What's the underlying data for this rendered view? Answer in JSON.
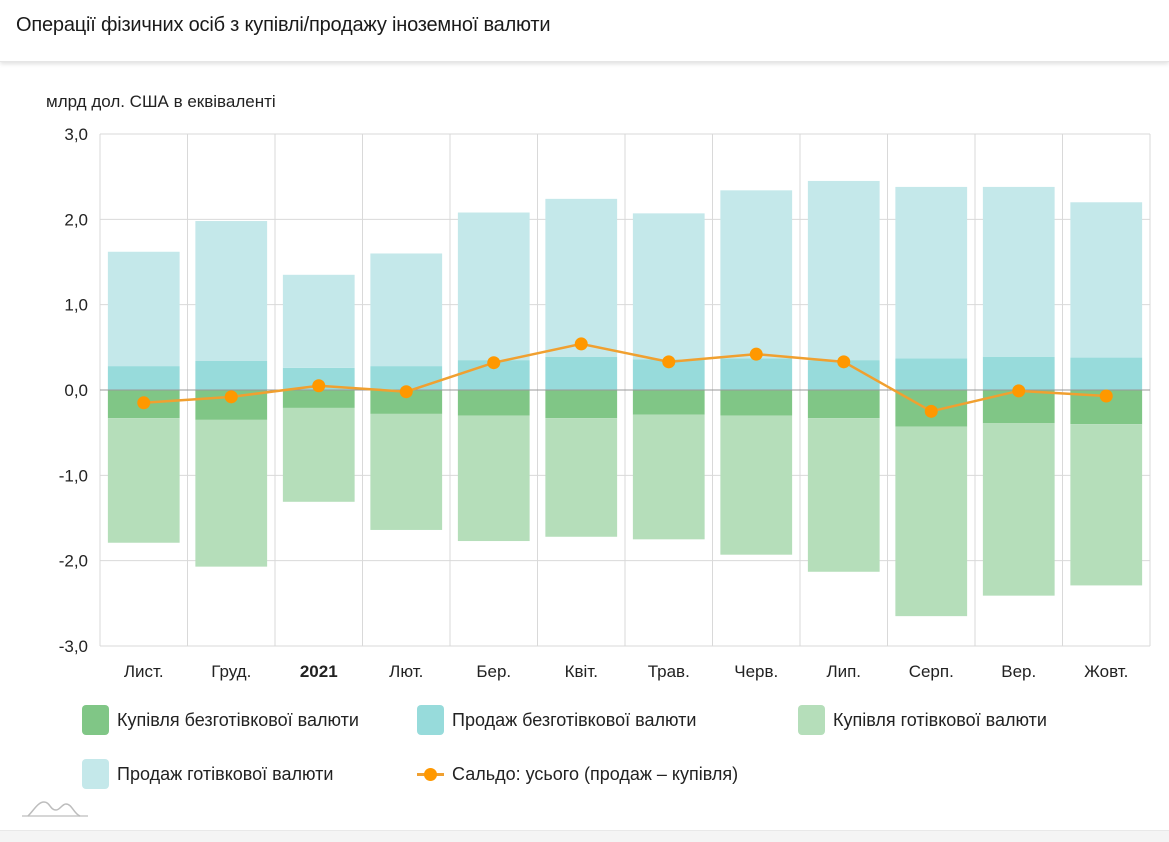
{
  "header": {
    "title": "Операції фізичних осіб з купівлі/продажу іноземної валюти"
  },
  "colors": {
    "buy_noncash": "#80c686",
    "sell_noncash": "#97dbdb",
    "buy_cash": "#b5deba",
    "sell_cash": "#c4e8ea",
    "saldo": "#ff9800",
    "saldo_line": "#f0a030",
    "grid": "#d9d9d9",
    "zero_line": "#999999"
  },
  "chart_data": {
    "type": "bar",
    "stacked": true,
    "title": "Операції фізичних осіб з купівлі/продажу іноземної валюти",
    "ylabel": "млрд дол. США в еквіваленті",
    "xlabel": "",
    "ylim": [
      -3.0,
      3.0
    ],
    "yticks": [
      "3,0",
      "2,0",
      "1,0",
      "0,0",
      "-1,0",
      "-2,0",
      "-3,0"
    ],
    "ytick_values": [
      3,
      2,
      1,
      0,
      -1,
      -2,
      -3
    ],
    "grid": true,
    "legend_position": "bottom",
    "categories": [
      "Лист.",
      "Груд.",
      "2021",
      "Лют.",
      "Бер.",
      "Квіт.",
      "Трав.",
      "Черв.",
      "Лип.",
      "Серп.",
      "Вер.",
      "Жовт."
    ],
    "bold_categories": [
      "2021"
    ],
    "series": [
      {
        "name": "Купівля безготівкової валюти",
        "type": "bar",
        "color_key": "buy_noncash",
        "values": [
          -0.33,
          -0.35,
          -0.21,
          -0.28,
          -0.3,
          -0.33,
          -0.29,
          -0.3,
          -0.33,
          -0.43,
          -0.39,
          -0.4
        ]
      },
      {
        "name": "Продаж безготівкової валюти",
        "type": "bar",
        "color_key": "sell_noncash",
        "values": [
          0.28,
          0.34,
          0.26,
          0.28,
          0.35,
          0.39,
          0.36,
          0.37,
          0.35,
          0.37,
          0.39,
          0.38
        ]
      },
      {
        "name": "Купівля готівкової валюти",
        "type": "bar",
        "color_key": "buy_cash",
        "values": [
          -1.46,
          -1.72,
          -1.1,
          -1.36,
          -1.47,
          -1.39,
          -1.46,
          -1.63,
          -1.8,
          -2.22,
          -2.02,
          -1.89
        ]
      },
      {
        "name": "Продаж готівкової валюти",
        "type": "bar",
        "color_key": "sell_cash",
        "values": [
          1.34,
          1.64,
          1.09,
          1.32,
          1.73,
          1.85,
          1.71,
          1.97,
          2.1,
          2.01,
          1.99,
          1.82
        ]
      },
      {
        "name": "Сальдо: усього (продаж – купівля)",
        "type": "line",
        "color_key": "saldo",
        "values": [
          -0.15,
          -0.08,
          0.05,
          -0.02,
          0.32,
          0.54,
          0.33,
          0.42,
          0.33,
          -0.25,
          -0.01,
          -0.07
        ]
      }
    ]
  },
  "legend": [
    {
      "label": "Купівля безготівкової валюти",
      "type": "swatch",
      "color_key": "buy_noncash"
    },
    {
      "label": "Продаж безготівкової валюти",
      "type": "swatch",
      "color_key": "sell_noncash"
    },
    {
      "label": "Купівля готівкової валюти",
      "type": "swatch",
      "color_key": "buy_cash"
    },
    {
      "label": "Продаж готівкової валюти",
      "type": "swatch",
      "color_key": "sell_cash"
    },
    {
      "label": "Сальдо: усього (продаж – купівля)",
      "type": "line",
      "color_key": "saldo"
    }
  ],
  "logo": {
    "icon": "mountain-logo-icon"
  }
}
